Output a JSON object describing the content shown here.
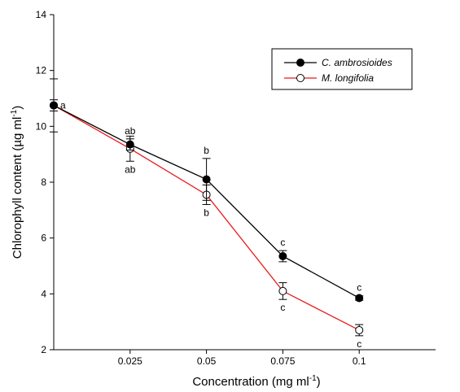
{
  "chart_data": {
    "type": "line",
    "x": [
      0,
      0.025,
      0.05,
      0.075,
      0.1
    ],
    "x_tick_labels": [
      "0.025",
      "0.05",
      "0.075",
      "0.1"
    ],
    "x_tick_values": [
      0.025,
      0.05,
      0.075,
      0.1
    ],
    "y_ticks": [
      2,
      4,
      6,
      8,
      10,
      12,
      14
    ],
    "xlim": [
      0,
      0.125
    ],
    "ylim": [
      2,
      14
    ],
    "xlabel": "Concentration (mg ml",
    "xlabel_sup": "-1",
    "xlabel_close": ")",
    "ylabel": "Chlorophyll content (µg ml",
    "ylabel_sup": "-1",
    "ylabel_close": ")",
    "grid": false,
    "legend_position": "top-right",
    "series": [
      {
        "name": "C. ambrosioides",
        "color": "#000000",
        "marker": "filled-circle",
        "values": [
          10.75,
          9.35,
          8.1,
          5.35,
          3.85
        ],
        "errors": [
          0.95,
          0.2,
          0.75,
          0.2,
          0.08
        ],
        "labels": [
          "a",
          "ab",
          "b",
          "c",
          "c"
        ]
      },
      {
        "name": "M. longifolia",
        "color": "#e8191c",
        "marker": "open-circle",
        "values": [
          10.75,
          9.2,
          7.55,
          4.1,
          2.7
        ],
        "errors": [
          0.2,
          0.45,
          0.35,
          0.3,
          0.2
        ],
        "labels": [
          "",
          "ab",
          "b",
          "c",
          "c"
        ]
      }
    ]
  }
}
